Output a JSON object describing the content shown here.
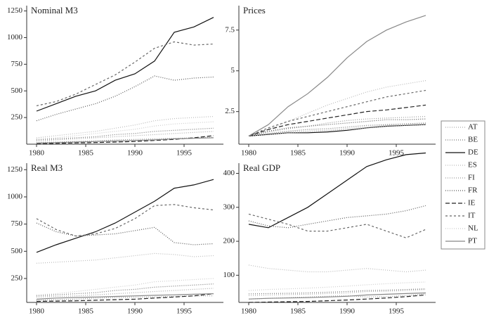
{
  "chart_data": [
    {
      "type": "line",
      "title": "Nominal M3",
      "x": [
        1980,
        1982,
        1984,
        1986,
        1988,
        1990,
        1992,
        1994,
        1996,
        1998
      ],
      "xlim": [
        1979,
        1999
      ],
      "xticks": [
        1980,
        1985,
        1990,
        1995
      ],
      "ylim": [
        0,
        1300
      ],
      "yticks": [
        250,
        500,
        750,
        1000,
        1250
      ],
      "series": [
        {
          "name": "AT",
          "color": "#aaaaaa",
          "dash": "1,2",
          "values": [
            30,
            40,
            50,
            60,
            70,
            80,
            90,
            100,
            110,
            120
          ]
        },
        {
          "name": "BE",
          "color": "#777777",
          "dash": "1,2",
          "values": [
            40,
            50,
            60,
            70,
            90,
            100,
            120,
            130,
            140,
            150
          ]
        },
        {
          "name": "DE",
          "color": "#111111",
          "dash": "none",
          "values": [
            310,
            380,
            450,
            500,
            600,
            660,
            780,
            1050,
            1100,
            1190
          ]
        },
        {
          "name": "ES",
          "color": "#bbbbbb",
          "dash": "1,2",
          "values": [
            60,
            80,
            100,
            120,
            150,
            180,
            220,
            240,
            250,
            260
          ]
        },
        {
          "name": "FI",
          "color": "#999999",
          "dash": "1,2",
          "values": [
            15,
            20,
            25,
            30,
            40,
            45,
            50,
            55,
            60,
            65
          ]
        },
        {
          "name": "FR",
          "color": "#555555",
          "dash": "1,2",
          "values": [
            220,
            280,
            330,
            380,
            450,
            540,
            640,
            600,
            620,
            630
          ]
        },
        {
          "name": "IE",
          "color": "#222222",
          "dash": "6,3",
          "values": [
            5,
            8,
            12,
            15,
            20,
            25,
            35,
            45,
            60,
            80
          ]
        },
        {
          "name": "IT",
          "color": "#666666",
          "dash": "3,3",
          "values": [
            360,
            400,
            470,
            560,
            650,
            770,
            900,
            960,
            930,
            940
          ]
        },
        {
          "name": "NL",
          "color": "#cccccc",
          "dash": "1,2",
          "values": [
            50,
            60,
            80,
            100,
            120,
            140,
            170,
            190,
            200,
            210
          ]
        },
        {
          "name": "PT",
          "color": "#888888",
          "dash": "none",
          "values": [
            10,
            15,
            20,
            25,
            30,
            35,
            40,
            50,
            55,
            60
          ]
        }
      ]
    },
    {
      "type": "line",
      "title": "Prices",
      "x": [
        1980,
        1982,
        1984,
        1986,
        1988,
        1990,
        1992,
        1994,
        1996,
        1998
      ],
      "xlim": [
        1979,
        1999
      ],
      "xticks": [
        1980,
        1985,
        1990,
        1995
      ],
      "ylim": [
        0.5,
        9
      ],
      "yticks": [
        2.5,
        5,
        7.5
      ],
      "series": [
        {
          "values": [
            1,
            1.12,
            1.25,
            1.3,
            1.35,
            1.45,
            1.55,
            1.65,
            1.7,
            1.75
          ]
        },
        {
          "values": [
            1,
            1.15,
            1.3,
            1.4,
            1.45,
            1.55,
            1.65,
            1.7,
            1.75,
            1.8
          ]
        },
        {
          "values": [
            1,
            1.1,
            1.2,
            1.2,
            1.25,
            1.35,
            1.5,
            1.6,
            1.65,
            1.7
          ]
        },
        {
          "values": [
            1,
            1.4,
            1.9,
            2.4,
            2.9,
            3.3,
            3.7,
            4.0,
            4.2,
            4.4
          ]
        },
        {
          "values": [
            1,
            1.25,
            1.45,
            1.6,
            1.8,
            1.95,
            2.05,
            2.1,
            2.15,
            2.2
          ]
        },
        {
          "values": [
            1,
            1.3,
            1.5,
            1.6,
            1.7,
            1.8,
            1.9,
            2.0,
            2.0,
            2.05
          ]
        },
        {
          "values": [
            1,
            1.4,
            1.7,
            1.9,
            2.1,
            2.3,
            2.5,
            2.6,
            2.75,
            2.9
          ]
        },
        {
          "values": [
            1,
            1.5,
            1.9,
            2.2,
            2.5,
            2.8,
            3.1,
            3.4,
            3.6,
            3.8
          ]
        },
        {
          "values": [
            1,
            1.1,
            1.2,
            1.25,
            1.3,
            1.4,
            1.5,
            1.6,
            1.65,
            1.7
          ]
        },
        {
          "values": [
            1,
            1.7,
            2.8,
            3.6,
            4.6,
            5.8,
            6.8,
            7.5,
            8.0,
            8.4
          ]
        }
      ]
    },
    {
      "type": "line",
      "title": "Real M3",
      "x": [
        1980,
        1982,
        1984,
        1986,
        1988,
        1990,
        1992,
        1994,
        1996,
        1998
      ],
      "xlim": [
        1979,
        1999
      ],
      "xticks": [
        1980,
        1985,
        1990,
        1995
      ],
      "ylim": [
        30,
        1310
      ],
      "yticks": [
        250,
        500,
        750,
        1000,
        1250
      ],
      "series": [
        {
          "values": [
            80,
            85,
            90,
            100,
            110,
            120,
            130,
            140,
            150,
            160
          ]
        },
        {
          "values": [
            90,
            100,
            110,
            120,
            140,
            150,
            170,
            180,
            190,
            200
          ]
        },
        {
          "values": [
            490,
            560,
            620,
            680,
            760,
            860,
            960,
            1080,
            1110,
            1160
          ]
        },
        {
          "values": [
            390,
            400,
            410,
            420,
            440,
            460,
            480,
            470,
            450,
            460
          ]
        },
        {
          "values": [
            50,
            55,
            60,
            70,
            75,
            80,
            80,
            85,
            90,
            90
          ]
        },
        {
          "values": [
            760,
            680,
            640,
            650,
            660,
            690,
            720,
            580,
            560,
            570
          ]
        },
        {
          "values": [
            40,
            42,
            45,
            50,
            55,
            60,
            70,
            80,
            90,
            110
          ]
        },
        {
          "values": [
            800,
            700,
            640,
            660,
            710,
            800,
            920,
            930,
            900,
            880
          ]
        },
        {
          "values": [
            100,
            110,
            130,
            150,
            170,
            190,
            220,
            230,
            240,
            250
          ]
        },
        {
          "values": [
            60,
            70,
            75,
            80,
            85,
            90,
            95,
            100,
            105,
            110
          ]
        }
      ]
    },
    {
      "type": "line",
      "title": "Real GDP",
      "x": [
        1980,
        1982,
        1984,
        1986,
        1988,
        1990,
        1992,
        1994,
        1996,
        1998
      ],
      "xlim": [
        1979,
        1999
      ],
      "xticks": [
        1980,
        1985,
        1990,
        1995
      ],
      "ylim": [
        20,
        430
      ],
      "yticks": [
        100,
        200,
        300,
        400
      ],
      "series": [
        {
          "values": [
            40,
            42,
            43,
            44,
            46,
            48,
            52,
            53,
            55,
            58
          ]
        },
        {
          "values": [
            45,
            46,
            47,
            48,
            50,
            52,
            55,
            56,
            58,
            60
          ]
        },
        {
          "values": [
            250,
            240,
            270,
            300,
            340,
            380,
            420,
            440,
            455,
            460
          ]
        },
        {
          "values": [
            130,
            120,
            115,
            110,
            110,
            115,
            120,
            115,
            110,
            115
          ]
        },
        {
          "values": [
            30,
            32,
            34,
            36,
            38,
            40,
            36,
            37,
            40,
            45
          ]
        },
        {
          "values": [
            260,
            245,
            240,
            250,
            260,
            270,
            275,
            280,
            290,
            305
          ]
        },
        {
          "values": [
            20,
            21,
            22,
            23,
            25,
            27,
            30,
            33,
            37,
            42
          ]
        },
        {
          "values": [
            280,
            265,
            250,
            230,
            230,
            240,
            250,
            230,
            210,
            235
          ]
        },
        {
          "values": [
            55,
            58,
            60,
            62,
            65,
            68,
            72,
            75,
            78,
            80
          ]
        },
        {
          "values": [
            30,
            32,
            33,
            34,
            36,
            38,
            42,
            44,
            46,
            48
          ]
        }
      ]
    }
  ]
}
